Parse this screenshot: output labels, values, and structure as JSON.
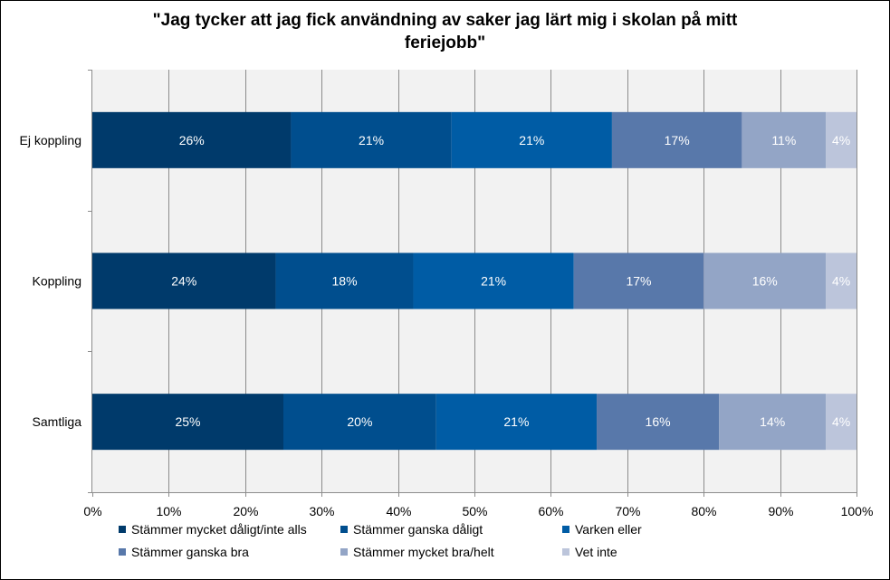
{
  "chart_data": {
    "type": "bar",
    "orientation": "horizontal",
    "stacked": true,
    "title": "\"Jag tycker att jag fick användning av saker jag lärt mig i skolan på mitt feriejobb\"",
    "title_lines": [
      "\"Jag tycker att jag fick användning av saker jag lärt mig i skolan på mitt",
      "feriejobb\""
    ],
    "categories": [
      "Ej koppling",
      "Koppling",
      "Samtliga"
    ],
    "xlim": [
      0,
      100
    ],
    "x_ticks": [
      "0%",
      "10%",
      "20%",
      "30%",
      "40%",
      "50%",
      "60%",
      "70%",
      "80%",
      "90%",
      "100%"
    ],
    "grid": true,
    "legend_position": "bottom",
    "series": [
      {
        "name": "Stämmer mycket dåligt/inte alls",
        "color": "#003a6b",
        "values": [
          26,
          24,
          25
        ],
        "labels": [
          "26%",
          "24%",
          "25%"
        ]
      },
      {
        "name": "Stämmer ganska dåligt",
        "color": "#004e8e",
        "values": [
          21,
          18,
          20
        ],
        "labels": [
          "21%",
          "18%",
          "20%"
        ]
      },
      {
        "name": "Varken eller",
        "color": "#005ca5",
        "values": [
          21,
          21,
          21
        ],
        "labels": [
          "21%",
          "21%",
          "21%"
        ]
      },
      {
        "name": "Stämmer ganska bra",
        "color": "#5878aa",
        "values": [
          17,
          17,
          16
        ],
        "labels": [
          "17%",
          "17%",
          "16%"
        ]
      },
      {
        "name": "Stämmer mycket bra/helt",
        "color": "#93a5c6",
        "values": [
          11,
          16,
          14
        ],
        "labels": [
          "11%",
          "16%",
          "14%"
        ]
      },
      {
        "name": "Vet inte",
        "color": "#bcc5db",
        "values": [
          4,
          4,
          4
        ],
        "labels": [
          "4%",
          "4%",
          "4%"
        ]
      }
    ]
  }
}
